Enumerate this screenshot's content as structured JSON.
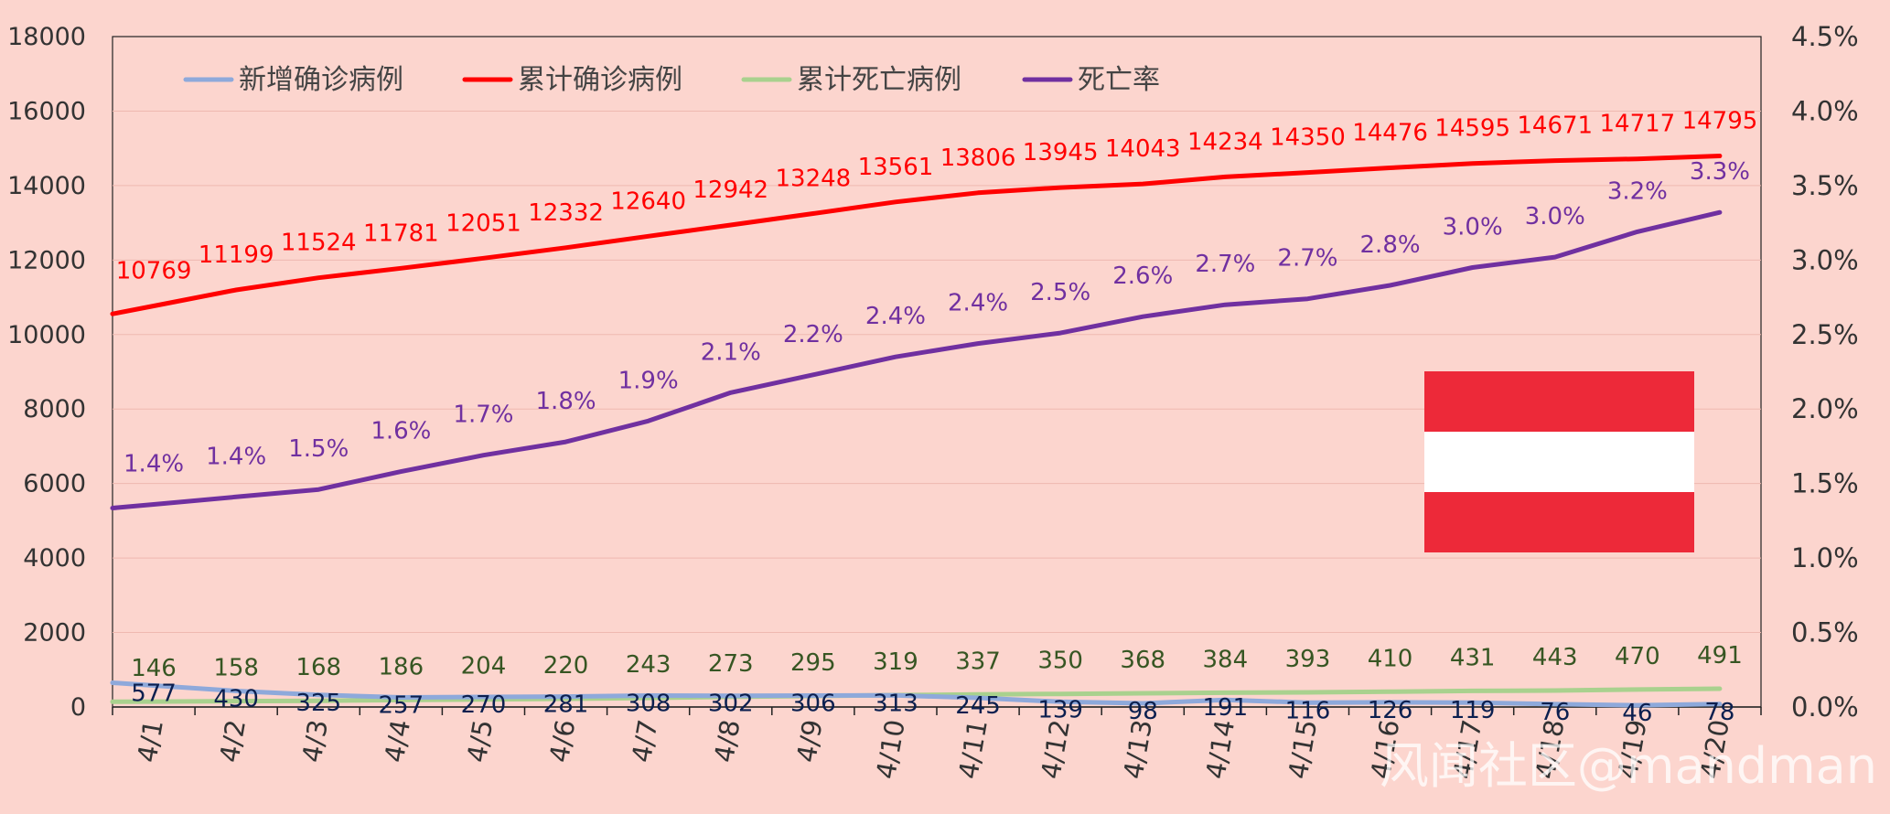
{
  "chart_data": {
    "type": "line",
    "categories": [
      "4/1",
      "4/2",
      "4/3",
      "4/4",
      "4/5",
      "4/6",
      "4/7",
      "4/8",
      "4/9",
      "4/10",
      "4/11",
      "4/12",
      "4/13",
      "4/14",
      "4/15",
      "4/16",
      "4/17",
      "4/18",
      "4/19",
      "4/20"
    ],
    "ylim": [
      0,
      18000
    ],
    "y_ticks": [
      0,
      2000,
      4000,
      6000,
      8000,
      10000,
      12000,
      14000,
      16000,
      18000
    ],
    "y2lim": [
      0,
      4.5
    ],
    "y2_ticks": [
      "0.0%",
      "0.5%",
      "1.0%",
      "1.5%",
      "2.0%",
      "2.5%",
      "3.0%",
      "3.5%",
      "4.0%",
      "4.5%"
    ],
    "grid": true,
    "legend_position": "top-left",
    "series": [
      {
        "name": "新增确诊病例",
        "axis": "left",
        "color": "#8EA9DB",
        "label_color": "#0B1F4F",
        "values": [
          577,
          430,
          325,
          257,
          270,
          281,
          308,
          302,
          306,
          313,
          245,
          139,
          98,
          191,
          116,
          126,
          119,
          76,
          46,
          78
        ],
        "labels": [
          "577",
          "430",
          "325",
          "257",
          "270",
          "281",
          "308",
          "302",
          "306",
          "313",
          "245",
          "139",
          "98",
          "191",
          "116",
          "126",
          "119",
          "76",
          "46",
          "78"
        ]
      },
      {
        "name": "累计确诊病例",
        "axis": "left",
        "color": "#FF0000",
        "label_color": "#FF0000",
        "values": [
          10769,
          11199,
          11524,
          11781,
          12051,
          12332,
          12640,
          12942,
          13248,
          13561,
          13806,
          13945,
          14043,
          14234,
          14350,
          14476,
          14595,
          14671,
          14717,
          14795
        ],
        "labels": [
          "10769",
          "11199",
          "11524",
          "11781",
          "12051",
          "12332",
          "12640",
          "12942",
          "13248",
          "13561",
          "13806",
          "13945",
          "14043",
          "14234",
          "14350",
          "14476",
          "14595",
          "14671",
          "14717",
          "14795"
        ]
      },
      {
        "name": "累计死亡病例",
        "axis": "left",
        "color": "#A9D18E",
        "label_color": "#375623",
        "values": [
          146,
          158,
          168,
          186,
          204,
          220,
          243,
          273,
          295,
          319,
          337,
          350,
          368,
          384,
          393,
          410,
          431,
          443,
          470,
          491
        ],
        "labels": [
          "146",
          "158",
          "168",
          "186",
          "204",
          "220",
          "243",
          "273",
          "295",
          "319",
          "337",
          "350",
          "368",
          "384",
          "393",
          "410",
          "431",
          "443",
          "470",
          "491"
        ]
      },
      {
        "name": "死亡率",
        "axis": "right",
        "color": "#7030A0",
        "label_color": "#7030A0",
        "values": [
          1.36,
          1.41,
          1.46,
          1.58,
          1.69,
          1.78,
          1.92,
          2.11,
          2.23,
          2.35,
          2.44,
          2.51,
          2.62,
          2.7,
          2.74,
          2.83,
          2.95,
          3.02,
          3.19,
          3.32
        ],
        "labels": [
          "1.4%",
          "1.4%",
          "1.5%",
          "1.6%",
          "1.7%",
          "1.8%",
          "1.9%",
          "2.1%",
          "2.2%",
          "2.4%",
          "2.4%",
          "2.5%",
          "2.6%",
          "2.7%",
          "2.7%",
          "2.8%",
          "3.0%",
          "3.0%",
          "3.2%",
          "3.3%"
        ]
      }
    ]
  },
  "flag": {
    "name": "austria-flag",
    "colors": [
      "#ED2939",
      "#FFFFFF",
      "#ED2939"
    ]
  },
  "watermark": "风闻社区@mandman"
}
